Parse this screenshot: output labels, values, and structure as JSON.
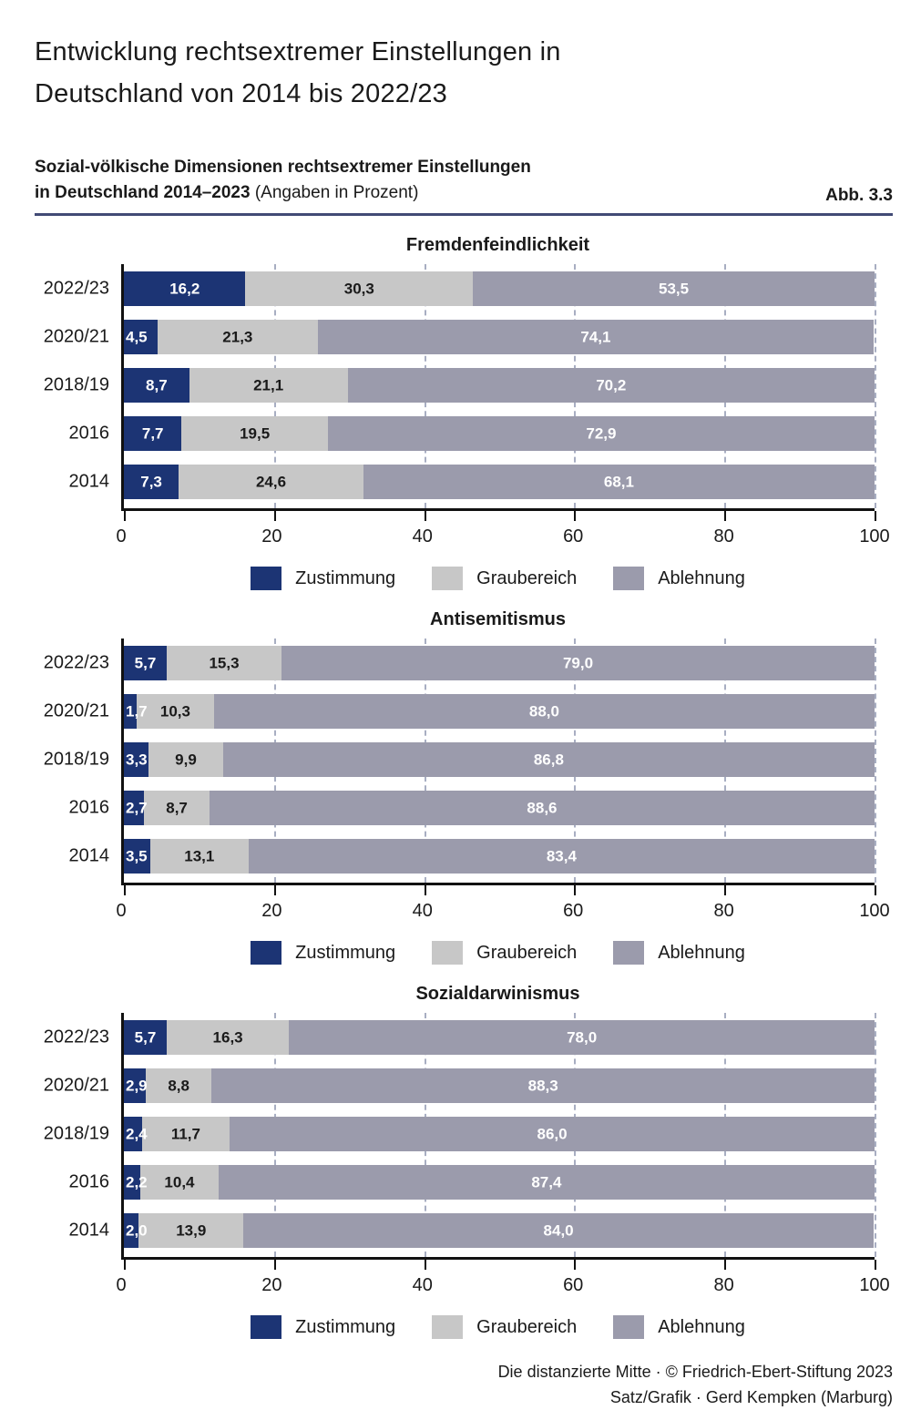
{
  "title": {
    "line1": "Entwicklung rechtsextremer Einstellungen in",
    "line2": "Deutschland von 2014 bis 2022/23"
  },
  "subtitle": {
    "line1": "Sozial-völkische Dimensionen rechtsextremer Einstellungen",
    "line2_bold": "in Deutschland 2014–2023",
    "line2_regular": "(Angaben in Prozent)",
    "figure_label": "Abb. 3.3"
  },
  "colors": {
    "zustimmung": "#1c3474",
    "graubereich": "#c7c7c7",
    "ablehnung": "#9b9bac",
    "rule": "#424a75",
    "grid": "#a8aec2",
    "axis": "#111111",
    "label_on_dark": "#ffffff",
    "label_on_gray": "#1a1a1a"
  },
  "legend": [
    "Zustimmung",
    "Graubereich",
    "Ablehnung"
  ],
  "x_axis": {
    "ticks": [
      0,
      20,
      40,
      60,
      80,
      100
    ],
    "max": 100
  },
  "chart_data": [
    {
      "type": "bar",
      "orientation": "horizontal",
      "stacked": true,
      "title": "Fremdenfeindlichkeit",
      "categories": [
        "2022/23",
        "2020/21",
        "2018/19",
        "2016",
        "2014"
      ],
      "series": [
        {
          "name": "Zustimmung",
          "values": [
            16.2,
            4.5,
            8.7,
            7.7,
            7.3
          ]
        },
        {
          "name": "Graubereich",
          "values": [
            30.3,
            21.3,
            21.1,
            19.5,
            24.6
          ]
        },
        {
          "name": "Ablehnung",
          "values": [
            53.5,
            74.1,
            70.2,
            72.9,
            68.1
          ]
        }
      ],
      "xlim": [
        0,
        100
      ],
      "grid": true,
      "legend_position": "bottom"
    },
    {
      "type": "bar",
      "orientation": "horizontal",
      "stacked": true,
      "title": "Antisemitismus",
      "categories": [
        "2022/23",
        "2020/21",
        "2018/19",
        "2016",
        "2014"
      ],
      "series": [
        {
          "name": "Zustimmung",
          "values": [
            5.7,
            1.7,
            3.3,
            2.7,
            3.5
          ]
        },
        {
          "name": "Graubereich",
          "values": [
            15.3,
            10.3,
            9.9,
            8.7,
            13.1
          ]
        },
        {
          "name": "Ablehnung",
          "values": [
            79.0,
            88.0,
            86.8,
            88.6,
            83.4
          ]
        }
      ],
      "xlim": [
        0,
        100
      ],
      "grid": true,
      "legend_position": "bottom"
    },
    {
      "type": "bar",
      "orientation": "horizontal",
      "stacked": true,
      "title": "Sozialdarwinismus",
      "categories": [
        "2022/23",
        "2020/21",
        "2018/19",
        "2016",
        "2014"
      ],
      "series": [
        {
          "name": "Zustimmung",
          "values": [
            5.7,
            2.9,
            2.4,
            2.2,
            2.0
          ]
        },
        {
          "name": "Graubereich",
          "values": [
            16.3,
            8.8,
            11.7,
            10.4,
            13.9
          ]
        },
        {
          "name": "Ablehnung",
          "values": [
            78.0,
            88.3,
            86.0,
            87.4,
            84.0
          ]
        }
      ],
      "xlim": [
        0,
        100
      ],
      "grid": true,
      "legend_position": "bottom"
    }
  ],
  "footer": {
    "line1": "Die distanzierte Mitte · © Friedrich-Ebert-Stiftung 2023",
    "line2": "Satz/Grafik · Gerd Kempken (Marburg)"
  }
}
